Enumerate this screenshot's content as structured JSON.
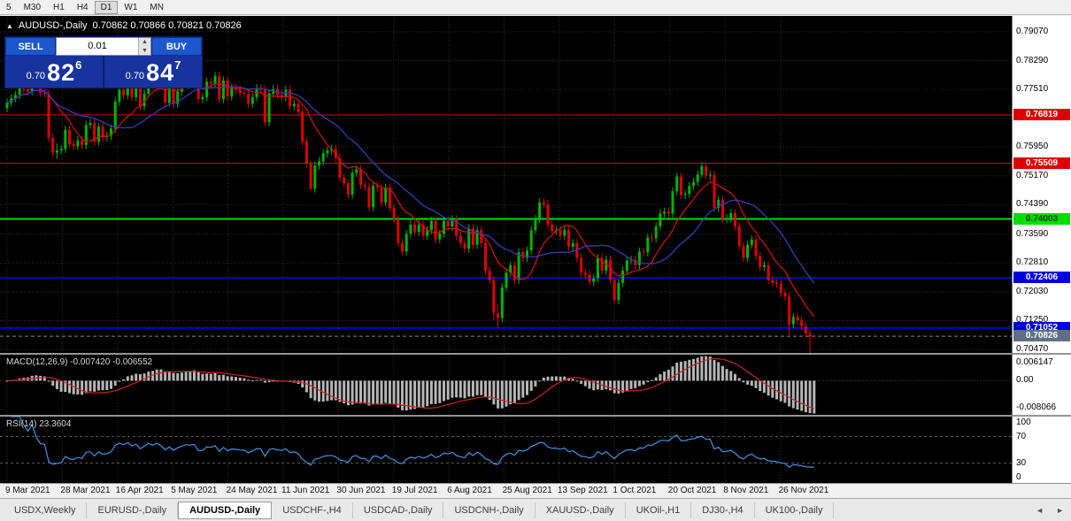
{
  "toolbar": {
    "timeframes": [
      "5",
      "M30",
      "H1",
      "H4",
      "D1",
      "W1",
      "MN"
    ],
    "active_timeframe": "D1"
  },
  "chart_header": {
    "collapse_icon": "▲",
    "symbol": "AUDUSD-,Daily",
    "ohlc": "0.70862 0.70866 0.70821 0.70826"
  },
  "trade_panel": {
    "sell_label": "SELL",
    "buy_label": "BUY",
    "volume": "0.01",
    "spin_up_icon": "▲",
    "spin_down_icon": "▼",
    "sell_price": {
      "prefix": "0.70",
      "big": "82",
      "sup": "6"
    },
    "buy_price": {
      "prefix": "0.70",
      "big": "84",
      "sup": "7"
    }
  },
  "indicators": {
    "macd_label": "MACD(12,26,9) -0.007420 -0.006552",
    "rsi_label": "RSI(14) 23.3604"
  },
  "tabs": {
    "items": [
      {
        "label": "USDX,Weekly",
        "active": false
      },
      {
        "label": "EURUSD-,Daily",
        "active": false
      },
      {
        "label": "AUDUSD-,Daily",
        "active": true
      },
      {
        "label": "USDCHF-,H4",
        "active": false
      },
      {
        "label": "USDCAD-,Daily",
        "active": false
      },
      {
        "label": "USDCNH-,Daily",
        "active": false
      },
      {
        "label": "XAUUSD-,Daily",
        "active": false
      },
      {
        "label": "UKOil-,H1",
        "active": false
      },
      {
        "label": "DJ30-,H4",
        "active": false
      },
      {
        "label": "UK100-,Daily",
        "active": false
      }
    ],
    "scroll_left_icon": "◄",
    "scroll_right_icon": "►"
  },
  "colors": {
    "chart_background": "#000000",
    "axis_background": "#ffffff",
    "candle_up": "#00b400",
    "candle_down": "#e00000",
    "grid": "#303030",
    "trade_panel_blue": "#16339e",
    "trade_button_blue": "#1c57cf"
  },
  "chart_data": {
    "type": "candlestick",
    "title": "AUDUSD Daily candlestick chart with MACD(12,26,9) and RSI(14) subwindows",
    "x_tick_labels": [
      "9 Mar 2021",
      "28 Mar 2021",
      "16 Apr 2021",
      "5 May 2021",
      "24 May 2021",
      "11 Jun 2021",
      "30 Jun 2021",
      "19 Jul 2021",
      "6 Aug 2021",
      "25 Aug 2021",
      "13 Sep 2021",
      "1 Oct 2021",
      "20 Oct 2021",
      "8 Nov 2021",
      "26 Nov 2021"
    ],
    "price_axis_labels": [
      "0.79070",
      "0.78290",
      "0.77510",
      "0.76730",
      "0.75950",
      "0.75170",
      "0.74390",
      "0.73590",
      "0.72810",
      "0.72030",
      "0.71250",
      "0.70470"
    ],
    "price_range": {
      "top": 0.7907,
      "bottom": 0.7047
    },
    "hlines": [
      {
        "price": 0.76819,
        "color": "#dd0000",
        "width": 1,
        "label": "0.76819",
        "text": "#ffffff"
      },
      {
        "price": 0.75509,
        "color": "#dd0000",
        "width": 1,
        "label": "0.75509",
        "text": "#ffffff"
      },
      {
        "price": 0.74003,
        "color": "#00dd00",
        "width": 2,
        "label": "0.74003",
        "text": "#003300"
      },
      {
        "price": 0.72406,
        "color": "#0000dd",
        "width": 2,
        "label": "0.72406",
        "text": "#ffffff"
      },
      {
        "price": 0.71052,
        "color": "#0000dd",
        "width": 2,
        "label": "0.71052",
        "text": "#ffffff"
      }
    ],
    "current_price": {
      "value": 0.70826,
      "label": "0.70826",
      "badge_color": "#5f6f85",
      "text": "#ffffff"
    },
    "candles": {
      "first_open": 0.77,
      "default_wick": 0.0011,
      "closes": [
        0.7715,
        0.7727,
        0.7736,
        0.7758,
        0.7752,
        0.7746,
        0.779,
        0.7763,
        0.7742,
        0.774,
        0.762,
        0.758,
        0.7586,
        0.759,
        0.7642,
        0.7603,
        0.7597,
        0.7613,
        0.76,
        0.7655,
        0.766,
        0.761,
        0.765,
        0.7622,
        0.7625,
        0.7645,
        0.7718,
        0.775,
        0.7735,
        0.7765,
        0.773,
        0.7755,
        0.7705,
        0.774,
        0.7782,
        0.7762,
        0.779,
        0.7764,
        0.7715,
        0.7755,
        0.7712,
        0.7745,
        0.777,
        0.7792,
        0.7788,
        0.7795,
        0.7725,
        0.773,
        0.7772,
        0.7767,
        0.7788,
        0.7725,
        0.7775,
        0.7732,
        0.7755,
        0.775,
        0.7742,
        0.774,
        0.7712,
        0.773,
        0.7755,
        0.775,
        0.7662,
        0.774,
        0.7752,
        0.7737,
        0.773,
        0.775,
        0.7705,
        0.7712,
        0.769,
        0.761,
        0.755,
        0.7482,
        0.7545,
        0.7556,
        0.7578,
        0.7586,
        0.759,
        0.7565,
        0.7512,
        0.7497,
        0.7466,
        0.7525,
        0.7535,
        0.7492,
        0.7487,
        0.7432,
        0.749,
        0.7485,
        0.7445,
        0.7485,
        0.743,
        0.74,
        0.7335,
        0.7312,
        0.736,
        0.7385,
        0.7365,
        0.7385,
        0.7355,
        0.737,
        0.7395,
        0.7345,
        0.736,
        0.7395,
        0.738,
        0.74,
        0.7355,
        0.7335,
        0.732,
        0.7375,
        0.733,
        0.737,
        0.7335,
        0.726,
        0.7235,
        0.7145,
        0.7132,
        0.7215,
        0.7255,
        0.7275,
        0.7235,
        0.731,
        0.7295,
        0.7315,
        0.737,
        0.74,
        0.7445,
        0.744,
        0.7385,
        0.7368,
        0.737,
        0.7355,
        0.737,
        0.7325,
        0.7335,
        0.7295,
        0.7255,
        0.725,
        0.723,
        0.724,
        0.7295,
        0.726,
        0.729,
        0.7235,
        0.718,
        0.7227,
        0.726,
        0.7288,
        0.729,
        0.7275,
        0.7312,
        0.731,
        0.735,
        0.7348,
        0.738,
        0.7415,
        0.742,
        0.7415,
        0.7475,
        0.7515,
        0.7465,
        0.7468,
        0.749,
        0.75,
        0.752,
        0.7543,
        0.7518,
        0.752,
        0.743,
        0.7452,
        0.74,
        0.7402,
        0.7416,
        0.738,
        0.7327,
        0.7295,
        0.733,
        0.7345,
        0.73,
        0.727,
        0.7275,
        0.7235,
        0.7227,
        0.7225,
        0.72,
        0.719,
        0.7115,
        0.7135,
        0.7126,
        0.711,
        0.709,
        0.7083,
        0.70826
      ],
      "overrides": {
        "12": [
          0.7605,
          0.7563
        ],
        "73": [
          0.7558,
          0.7478
        ],
        "117": [
          0.7245,
          0.7126
        ],
        "118": [
          0.7168,
          0.7106
        ],
        "146": [
          0.7242,
          0.717
        ],
        "167": [
          0.7555,
          0.7512
        ],
        "188": [
          0.7202,
          0.7085
        ],
        "193": [
          0.71,
          0.7032
        ],
        "194": [
          0.70866,
          0.70821
        ]
      }
    },
    "moving_averages": [
      {
        "period": 10,
        "type": "sma",
        "color": "#cc1111"
      },
      {
        "period": 21,
        "type": "sma",
        "color": "#3a3ab8"
      }
    ],
    "macd": {
      "fast": 12,
      "slow": 26,
      "signal_period": 9,
      "value": -0.00742,
      "signal_value": -0.006552,
      "axis_labels": [
        "0.006147",
        "0.00",
        "-0.008066"
      ],
      "scale": {
        "max": 0.006147,
        "min": -0.008066
      },
      "histogram_color": "#b6b6b6",
      "signal_color": "#cc2222"
    },
    "rsi": {
      "period": 14,
      "value": 23.3604,
      "axis_labels": [
        "100",
        "70",
        "30",
        "0"
      ],
      "levels": [
        70,
        30
      ],
      "color": "#3f95e8"
    }
  }
}
